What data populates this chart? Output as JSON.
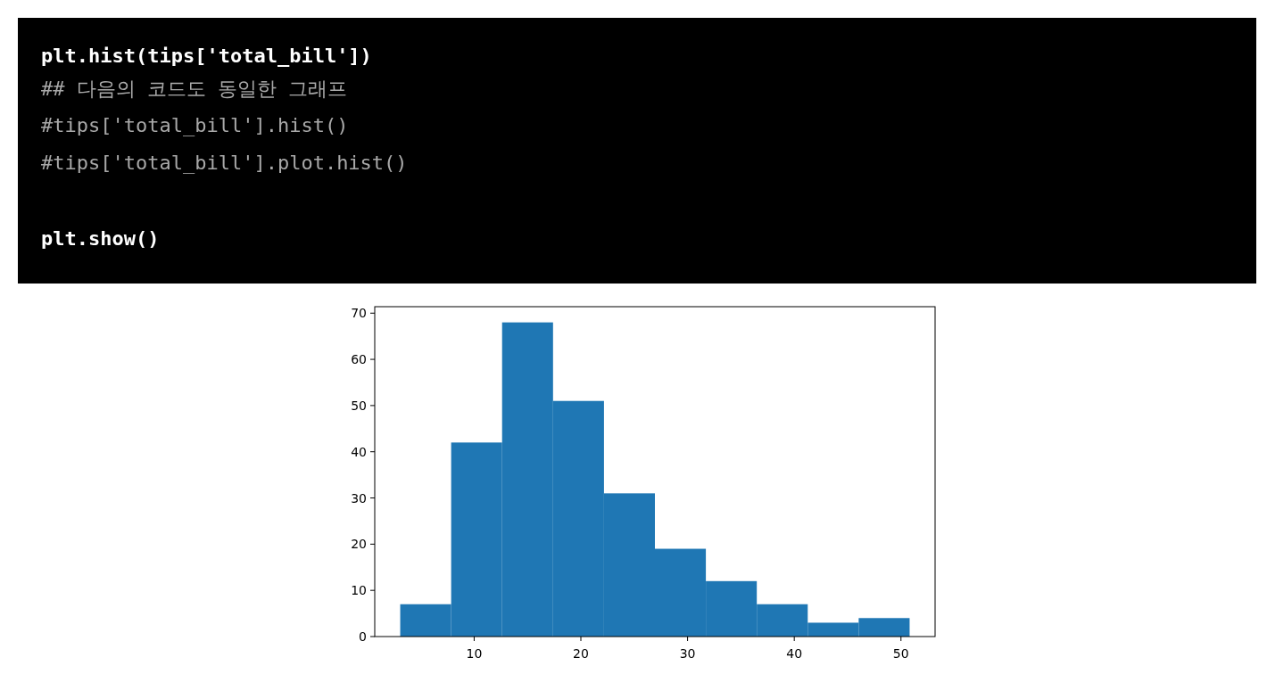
{
  "chart_data": {
    "type": "histogram",
    "bins": [
      3.07,
      7.844,
      12.618,
      17.392,
      22.166,
      26.94,
      31.714,
      36.488,
      41.262,
      46.036,
      50.81
    ],
    "values": [
      7,
      42,
      68,
      51,
      31,
      19,
      12,
      7,
      3,
      4
    ],
    "color": "#1f77b4",
    "xlim": [
      0.683,
      53.197
    ],
    "ylim": [
      0,
      71.4
    ],
    "xticks": [
      10,
      20,
      30,
      40,
      50
    ],
    "yticks": [
      0,
      10,
      20,
      30,
      40,
      50,
      60,
      70
    ],
    "grid": false,
    "annotations": [
      "plt.hist(tips['total_bill'])",
      "## 다음의 코드도 동일한 그래프",
      "#tips['total_bill'].hist()",
      "#tips['total_bill'].plot.hist()",
      "plt.show()"
    ]
  }
}
